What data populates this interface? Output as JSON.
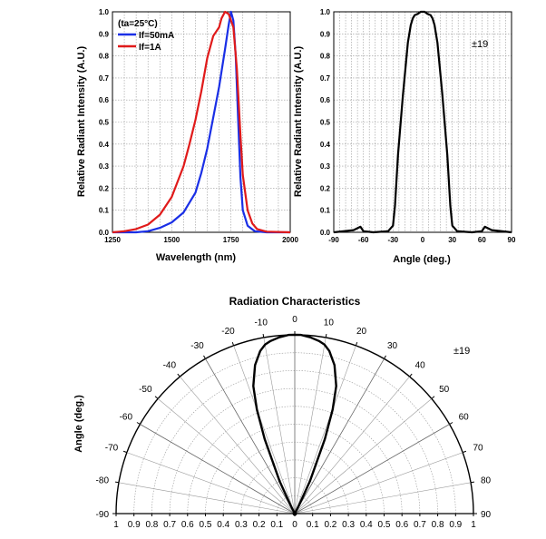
{
  "chart_data": [
    {
      "type": "line",
      "xlabel": "Wavelength (nm)",
      "ylabel": "Relative Radiant Intensity (A.U.)",
      "xlim": [
        1250,
        2000
      ],
      "ylim": [
        0,
        1.0
      ],
      "x_ticks": [
        "1250",
        "1500",
        "1750",
        "2000"
      ],
      "y_ticks": [
        "0.0",
        "0.1",
        "0.2",
        "0.3",
        "0.4",
        "0.5",
        "0.6",
        "0.7",
        "0.8",
        "0.9",
        "1.0"
      ],
      "grid": true,
      "legend_title": "(ta=25°C)",
      "legend_position": "top-left",
      "series": [
        {
          "name": "If=50mA",
          "color": "#1a2fe6",
          "x": [
            1250,
            1350,
            1400,
            1450,
            1500,
            1550,
            1600,
            1625,
            1650,
            1675,
            1700,
            1725,
            1740,
            1750,
            1760,
            1770,
            1780,
            1790,
            1800,
            1820,
            1850,
            1900,
            2000
          ],
          "y": [
            0.0,
            0.0,
            0.005,
            0.02,
            0.045,
            0.09,
            0.18,
            0.27,
            0.38,
            0.52,
            0.66,
            0.83,
            0.94,
            1.0,
            0.96,
            0.8,
            0.52,
            0.25,
            0.1,
            0.03,
            0.005,
            0.0,
            0.0
          ]
        },
        {
          "name": "If=1A",
          "color": "#e01a1a",
          "x": [
            1250,
            1300,
            1350,
            1400,
            1450,
            1500,
            1550,
            1575,
            1600,
            1625,
            1650,
            1675,
            1700,
            1710,
            1725,
            1740,
            1760,
            1775,
            1790,
            1800,
            1820,
            1840,
            1860,
            1900,
            2000
          ],
          "y": [
            0.0,
            0.005,
            0.015,
            0.035,
            0.08,
            0.16,
            0.3,
            0.4,
            0.51,
            0.64,
            0.79,
            0.89,
            0.93,
            0.97,
            1.0,
            0.99,
            0.93,
            0.74,
            0.44,
            0.26,
            0.1,
            0.04,
            0.015,
            0.003,
            0.0
          ]
        }
      ]
    },
    {
      "type": "line",
      "xlabel": "Angle (deg.)",
      "ylabel": "Relative Radiant Intensity (A.U.)",
      "xlim": [
        -90,
        90
      ],
      "ylim": [
        0,
        1.0
      ],
      "x_ticks": [
        "-90",
        "-60",
        "-30",
        "0",
        "30",
        "60",
        "90"
      ],
      "y_ticks": [
        "0.0",
        "0.1",
        "0.2",
        "0.3",
        "0.4",
        "0.5",
        "0.6",
        "0.7",
        "0.8",
        "0.9",
        "1.0"
      ],
      "grid": true,
      "annotation": "±19",
      "series": [
        {
          "color": "#000000",
          "x": [
            -90,
            -70,
            -63,
            -60,
            -50,
            -35,
            -30,
            -28,
            -25,
            -20,
            -15,
            -12,
            -10,
            -8,
            -5,
            -2,
            0,
            2,
            5,
            8,
            10,
            12,
            15,
            20,
            25,
            28,
            30,
            35,
            50,
            60,
            63,
            70,
            90
          ],
          "y": [
            0.0,
            0.01,
            0.025,
            0.005,
            0.0,
            0.005,
            0.03,
            0.12,
            0.35,
            0.62,
            0.86,
            0.94,
            0.97,
            0.985,
            0.99,
            1.0,
            1.0,
            1.0,
            0.99,
            0.985,
            0.97,
            0.94,
            0.86,
            0.62,
            0.35,
            0.12,
            0.03,
            0.005,
            0.0,
            0.005,
            0.025,
            0.01,
            0.0
          ]
        }
      ]
    },
    {
      "type": "polar",
      "title": "Radiation Characteristics",
      "ylabel": "Angle (deg.)",
      "radial_ticks": [
        "1",
        "0.9",
        "0.8",
        "0.7",
        "0.6",
        "0.5",
        "0.4",
        "0.3",
        "0.2",
        "0.1",
        "0",
        "0.1",
        "0.2",
        "0.3",
        "0.4",
        "0.5",
        "0.6",
        "0.7",
        "0.8",
        "0.9",
        "1"
      ],
      "angle_ticks_left": [
        "-10",
        "-20",
        "-30",
        "-40",
        "-50",
        "-60",
        "-70",
        "-80",
        "-90"
      ],
      "angle_ticks_center": "0",
      "angle_ticks_right": [
        "10",
        "20",
        "30",
        "40",
        "50",
        "60",
        "70",
        "80",
        "90"
      ],
      "annotation": "±19",
      "series": [
        {
          "color": "#000000",
          "angle": [
            -30,
            -27,
            -25,
            -22,
            -20,
            -18,
            -15,
            -12,
            -10,
            -8,
            -5,
            -2,
            0,
            2,
            5,
            8,
            10,
            12,
            15,
            18,
            20,
            22,
            25,
            27,
            30
          ],
          "r": [
            0.0,
            0.05,
            0.2,
            0.45,
            0.62,
            0.75,
            0.86,
            0.93,
            0.96,
            0.975,
            0.99,
            1.0,
            1.0,
            1.0,
            0.99,
            0.975,
            0.96,
            0.93,
            0.86,
            0.75,
            0.62,
            0.45,
            0.2,
            0.05,
            0.0
          ]
        }
      ]
    }
  ]
}
